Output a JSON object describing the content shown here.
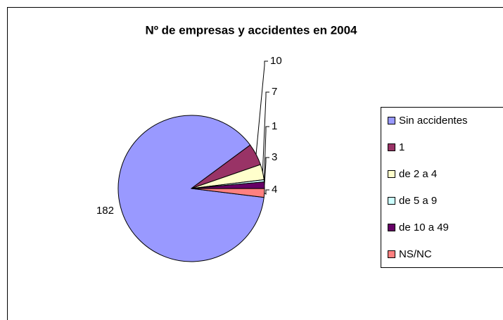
{
  "chart_data": {
    "type": "pie",
    "title": "Nº de empresas y accidentes en 2004",
    "categories": [
      "Sin accidentes",
      "1",
      "de 2 a 4",
      "de 5 a 9",
      "de 10 a 49",
      "NS/NC"
    ],
    "values": [
      182,
      10,
      7,
      1,
      3,
      4
    ],
    "colors": [
      "#9999ff",
      "#993366",
      "#ffffcc",
      "#ccffff",
      "#660066",
      "#ff8080"
    ],
    "legend": "right"
  }
}
